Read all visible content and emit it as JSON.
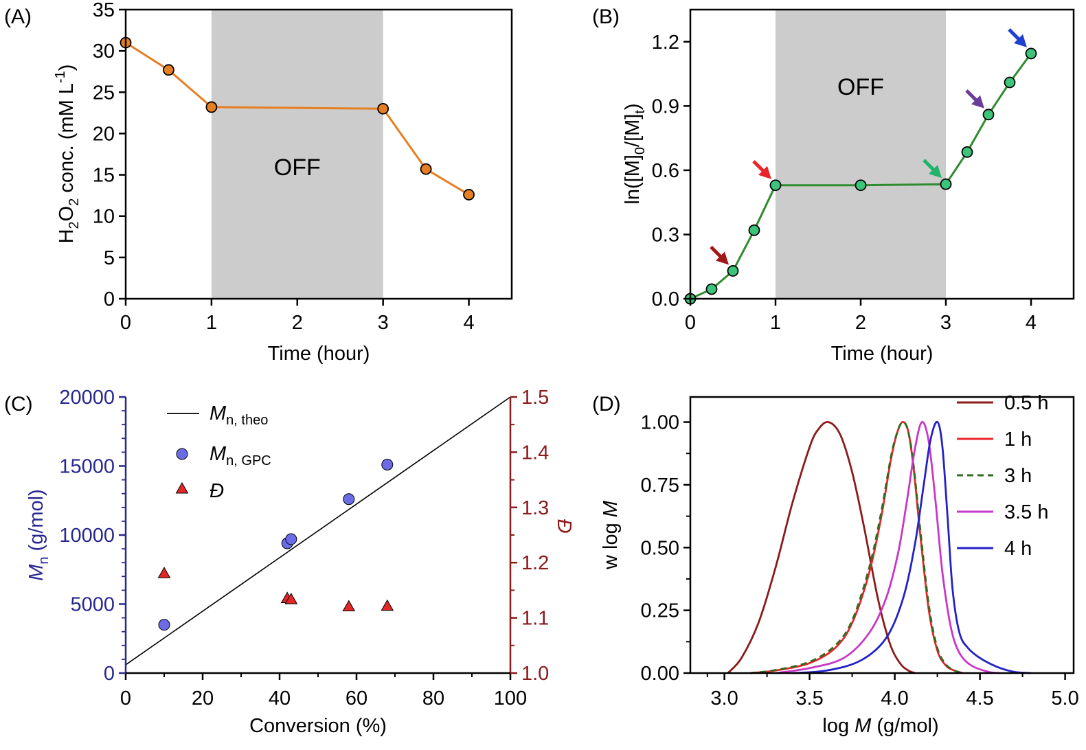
{
  "chart_data": [
    {
      "panel": "(A)",
      "type": "line",
      "xlabel": "Time (hour)",
      "ylabel": {
        "pre": "H",
        "sub1": "2",
        "mid": "O",
        "sub2": "2",
        "post": " conc. (mM L",
        "sup": "-1",
        "end": ")"
      },
      "xlim": [
        0,
        4.5
      ],
      "ylim": [
        0,
        35
      ],
      "xticks": [
        0,
        1,
        2,
        3,
        4
      ],
      "yticks": [
        0,
        5,
        10,
        15,
        20,
        25,
        30,
        35
      ],
      "off_region": [
        1,
        3
      ],
      "off_label": "OFF",
      "series": [
        {
          "x": [
            0,
            0.5,
            1,
            3,
            3.5,
            4
          ],
          "y": [
            31.0,
            27.7,
            23.2,
            23.0,
            15.7,
            12.6
          ],
          "color": "#e67e22"
        }
      ]
    },
    {
      "panel": "(B)",
      "type": "line",
      "xlabel": "Time (hour)",
      "ylabel": {
        "pre": "ln([M]",
        "sub1": "0",
        "mid": "/[M]",
        "sub2": "t",
        "end": ")"
      },
      "xlim": [
        0,
        4.5
      ],
      "ylim": [
        0,
        1.35
      ],
      "xticks": [
        0,
        1,
        2,
        3,
        4
      ],
      "yticks": [
        0.0,
        0.3,
        0.6,
        0.9,
        1.2
      ],
      "yticklabels": [
        "0.0",
        "0.3",
        "0.6",
        "0.9",
        "1.2"
      ],
      "off_region": [
        1,
        3
      ],
      "off_label": "OFF",
      "series": [
        {
          "x": [
            0,
            0.25,
            0.5,
            0.75,
            1,
            2,
            3,
            3.25,
            3.5,
            3.75,
            4
          ],
          "y": [
            0.0,
            0.045,
            0.13,
            0.32,
            0.53,
            0.53,
            0.535,
            0.685,
            0.86,
            1.01,
            1.145
          ],
          "color": "#2e8b2e",
          "marker": "#3cc47a"
        }
      ],
      "arrows": [
        {
          "x": 0.5,
          "y": 0.13,
          "color": "#a01818"
        },
        {
          "x": 1,
          "y": 0.53,
          "color": "#e8262a"
        },
        {
          "x": 3,
          "y": 0.535,
          "color": "#22b36a"
        },
        {
          "x": 3.5,
          "y": 0.86,
          "color": "#6a3d9a"
        },
        {
          "x": 4,
          "y": 1.145,
          "color": "#1f3fd1"
        }
      ]
    },
    {
      "panel": "(C)",
      "type": "scatter",
      "xlabel": "Conversion (%)",
      "ylabel_left": {
        "pre": "M",
        "sub": "n",
        "post": " (g/mol)"
      },
      "ylabel_right": "Đ",
      "xlim": [
        0,
        100
      ],
      "ylim": [
        0,
        20000
      ],
      "y2lim": [
        1.0,
        1.5
      ],
      "xticks": [
        0,
        20,
        40,
        60,
        80,
        100
      ],
      "yticks": [
        0,
        5000,
        10000,
        15000,
        20000
      ],
      "y2ticks": [
        1.0,
        1.1,
        1.2,
        1.3,
        1.4,
        1.5
      ],
      "y2ticklabels": [
        "1.0",
        "1.1",
        "1.2",
        "1.3",
        "1.4",
        "1.5"
      ],
      "left_axis_color": "#27278f",
      "right_axis_color": "#8b1a1a",
      "legend": [
        {
          "main": "M",
          "sub": "n, theo"
        },
        {
          "main": "M",
          "sub": "n, GPC"
        },
        {
          "main": "Đ",
          "sub": ""
        }
      ],
      "theo_line": {
        "x": [
          0,
          100
        ],
        "y": [
          600,
          20000
        ]
      },
      "gpc": {
        "x": [
          10,
          42,
          43,
          58,
          68
        ],
        "y": [
          3500,
          9400,
          9700,
          12600,
          15100
        ]
      },
      "dispersity": {
        "x": [
          10,
          42,
          43,
          58,
          68
        ],
        "y": [
          1.18,
          1.135,
          1.133,
          1.12,
          1.121
        ]
      }
    },
    {
      "panel": "(D)",
      "type": "line",
      "xlabel": {
        "pre": "log ",
        "it": "M",
        "post": " (g/mol)"
      },
      "ylabel": {
        "pre": "w log ",
        "it": "M"
      },
      "xlim": [
        2.8,
        5.05
      ],
      "ylim": [
        0,
        1.1
      ],
      "xticks": [
        3.0,
        3.5,
        4.0,
        4.5,
        5.0
      ],
      "xticklabels": [
        "3.0",
        "3.5",
        "4.0",
        "4.5",
        "5.0"
      ],
      "yticks": [
        0,
        0.25,
        0.5,
        0.75,
        1.0
      ],
      "yticklabels": [
        "0.00",
        "0.25",
        "0.50",
        "0.75",
        "1.00"
      ],
      "series": [
        {
          "name": "0.5 h",
          "color": "#8b1a1a",
          "dash": false,
          "x": [
            3.02,
            3.1,
            3.2,
            3.3,
            3.4,
            3.5,
            3.55,
            3.61,
            3.68,
            3.75,
            3.82,
            3.9,
            3.97,
            4.03,
            4.08,
            4.12
          ],
          "y": [
            0,
            0.06,
            0.2,
            0.42,
            0.68,
            0.9,
            0.97,
            1.0,
            0.95,
            0.8,
            0.58,
            0.3,
            0.12,
            0.04,
            0.01,
            0
          ]
        },
        {
          "name": "1 h",
          "color": "#e8262a",
          "dash": false,
          "x": [
            3.15,
            3.3,
            3.5,
            3.65,
            3.75,
            3.85,
            3.92,
            3.98,
            4.02,
            4.05,
            4.08,
            4.11,
            4.15,
            4.2,
            4.25,
            4.3,
            4.35,
            4.4
          ],
          "y": [
            0,
            0.01,
            0.04,
            0.1,
            0.2,
            0.4,
            0.62,
            0.86,
            0.97,
            1.0,
            0.96,
            0.82,
            0.55,
            0.25,
            0.09,
            0.03,
            0.01,
            0
          ]
        },
        {
          "name": "3 h",
          "color": "#2f6b1e",
          "dash": true,
          "x": [
            3.15,
            3.3,
            3.5,
            3.65,
            3.75,
            3.85,
            3.92,
            3.98,
            4.02,
            4.05,
            4.08,
            4.11,
            4.15,
            4.2,
            4.25,
            4.3,
            4.35,
            4.4
          ],
          "y": [
            0,
            0.012,
            0.045,
            0.11,
            0.21,
            0.42,
            0.64,
            0.87,
            0.97,
            1.0,
            0.96,
            0.83,
            0.57,
            0.27,
            0.1,
            0.035,
            0.01,
            0
          ]
        },
        {
          "name": "3.5 h",
          "color": "#c837c8",
          "dash": false,
          "x": [
            3.3,
            3.5,
            3.7,
            3.85,
            3.95,
            4.02,
            4.07,
            4.12,
            4.16,
            4.2,
            4.24,
            4.28,
            4.33,
            4.38,
            4.45,
            4.55,
            4.62
          ],
          "y": [
            0,
            0.02,
            0.06,
            0.16,
            0.3,
            0.48,
            0.68,
            0.9,
            1.0,
            0.92,
            0.68,
            0.4,
            0.18,
            0.08,
            0.03,
            0.005,
            0
          ]
        },
        {
          "name": "4 h",
          "color": "#2222c8",
          "dash": false,
          "x": [
            3.4,
            3.6,
            3.8,
            3.95,
            4.05,
            4.12,
            4.17,
            4.21,
            4.25,
            4.28,
            4.31,
            4.34,
            4.38,
            4.43,
            4.5,
            4.6,
            4.7,
            4.8
          ],
          "y": [
            0,
            0.01,
            0.05,
            0.14,
            0.3,
            0.52,
            0.75,
            0.93,
            1.0,
            0.9,
            0.62,
            0.33,
            0.16,
            0.1,
            0.06,
            0.025,
            0.005,
            0
          ]
        }
      ]
    }
  ]
}
